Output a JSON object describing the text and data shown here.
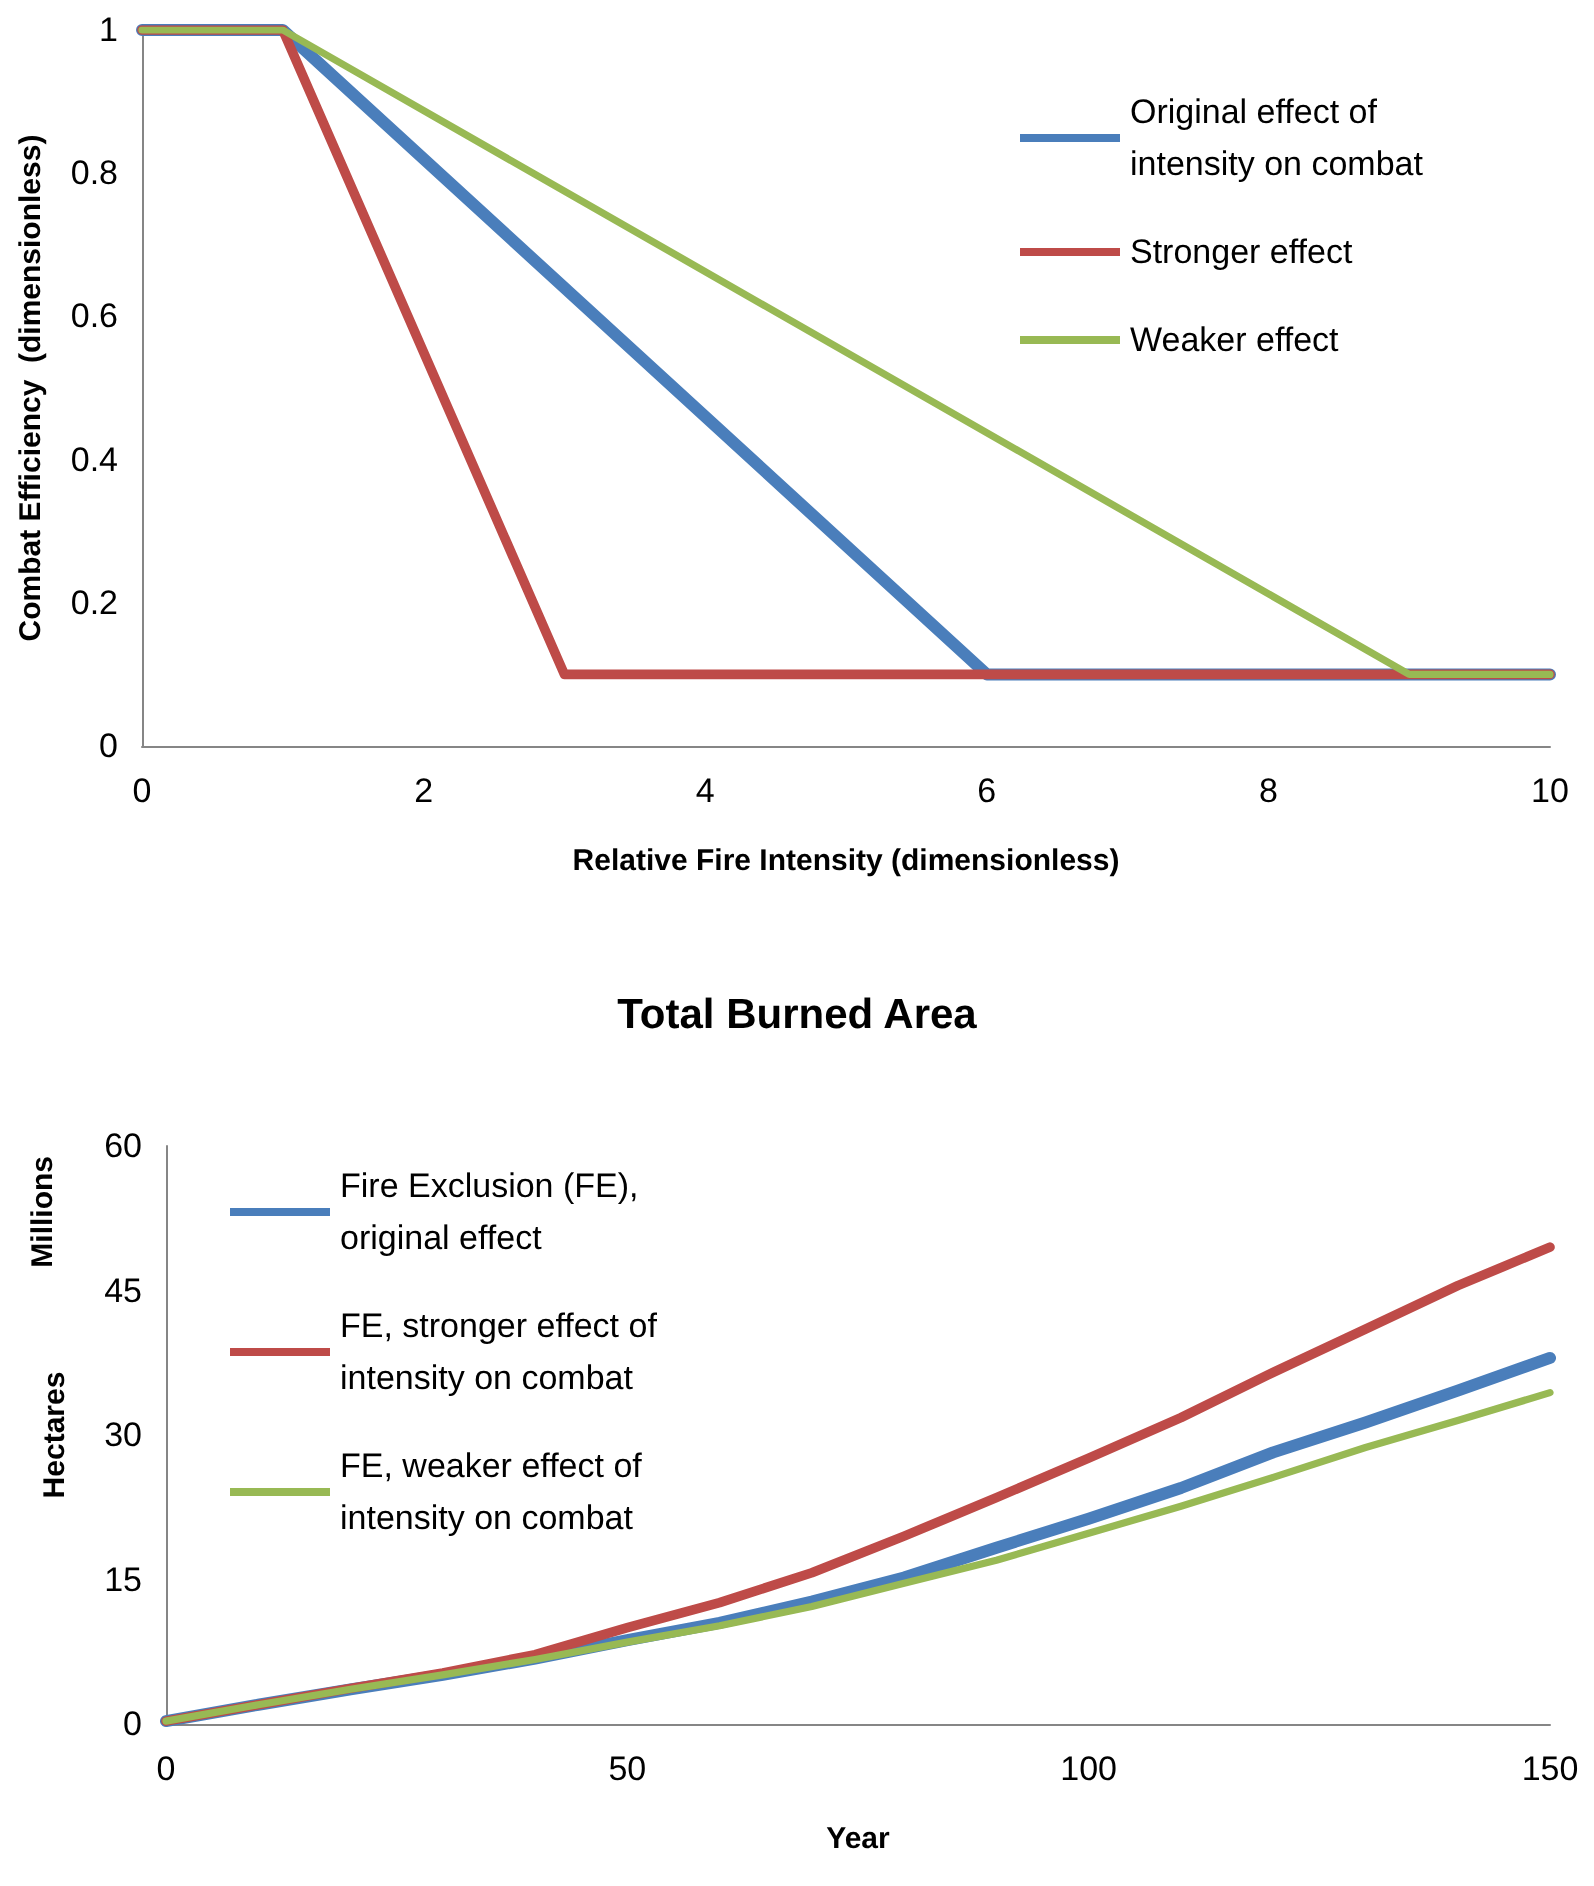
{
  "chart_data": [
    {
      "type": "line",
      "xlabel": "Relative Fire Intensity (dimensionless)",
      "ylabel": "Combat Efficiency  (dimensionless)",
      "xlim": [
        0,
        10
      ],
      "xticks": [
        0,
        2,
        4,
        6,
        8,
        10
      ],
      "ylim": [
        0,
        1
      ],
      "yticks": [
        0,
        0.2,
        0.4,
        0.6,
        0.8,
        1
      ],
      "grid": false,
      "legend": "top right",
      "marker": "none",
      "line_style": "solid",
      "series": [
        {
          "name": "Original effect of intensity on combat",
          "color": "#4a7ebb",
          "x": [
            0,
            1,
            6,
            10
          ],
          "values": [
            1,
            1,
            0.1,
            0.1
          ]
        },
        {
          "name": "Stronger effect",
          "color": "#be4b48",
          "x": [
            0,
            1,
            3,
            10
          ],
          "values": [
            1,
            1,
            0.1,
            0.1
          ]
        },
        {
          "name": "Weaker effect",
          "color": "#98b954",
          "x": [
            0,
            1,
            9,
            10
          ],
          "values": [
            1,
            1,
            0.1,
            0.1
          ]
        }
      ]
    },
    {
      "type": "line",
      "title": "Total Burned Area",
      "xlabel": "Year",
      "ylabel": "Hectares",
      "annotations": [
        "Millions"
      ],
      "xlim": [
        0,
        150
      ],
      "xticks": [
        0,
        50,
        100,
        150
      ],
      "ylim": [
        0,
        60
      ],
      "yticks": [
        0,
        15,
        30,
        45,
        60
      ],
      "grid": false,
      "legend": "top left",
      "marker": "none",
      "line_style": "solid",
      "x": [
        0,
        10,
        20,
        30,
        40,
        50,
        60,
        70,
        80,
        90,
        100,
        110,
        120,
        130,
        140,
        150
      ],
      "series": [
        {
          "name": "Fire Exclusion (FE), original effect",
          "color": "#4a7ebb",
          "values": [
            0.3,
            2,
            3.6,
            5.1,
            6.8,
            8.7,
            10.5,
            12.7,
            15.2,
            18.3,
            21.3,
            24.5,
            28.2,
            31.3,
            34.6,
            38
          ]
        },
        {
          "name": "FE, stronger effect of intensity on combat",
          "color": "#be4b48",
          "values": [
            0.3,
            2,
            3.7,
            5.3,
            7.2,
            10,
            12.6,
            15.7,
            19.5,
            23.5,
            27.6,
            31.8,
            36.5,
            41,
            45.5,
            49.5
          ]
        },
        {
          "name": "FE, weaker effect of intensity on combat",
          "color": "#98b954",
          "values": [
            0.3,
            2,
            3.6,
            5.1,
            6.7,
            8.5,
            10.2,
            12.2,
            14.6,
            17,
            19.8,
            22.6,
            25.6,
            28.7,
            31.5,
            34.4
          ]
        }
      ]
    }
  ]
}
